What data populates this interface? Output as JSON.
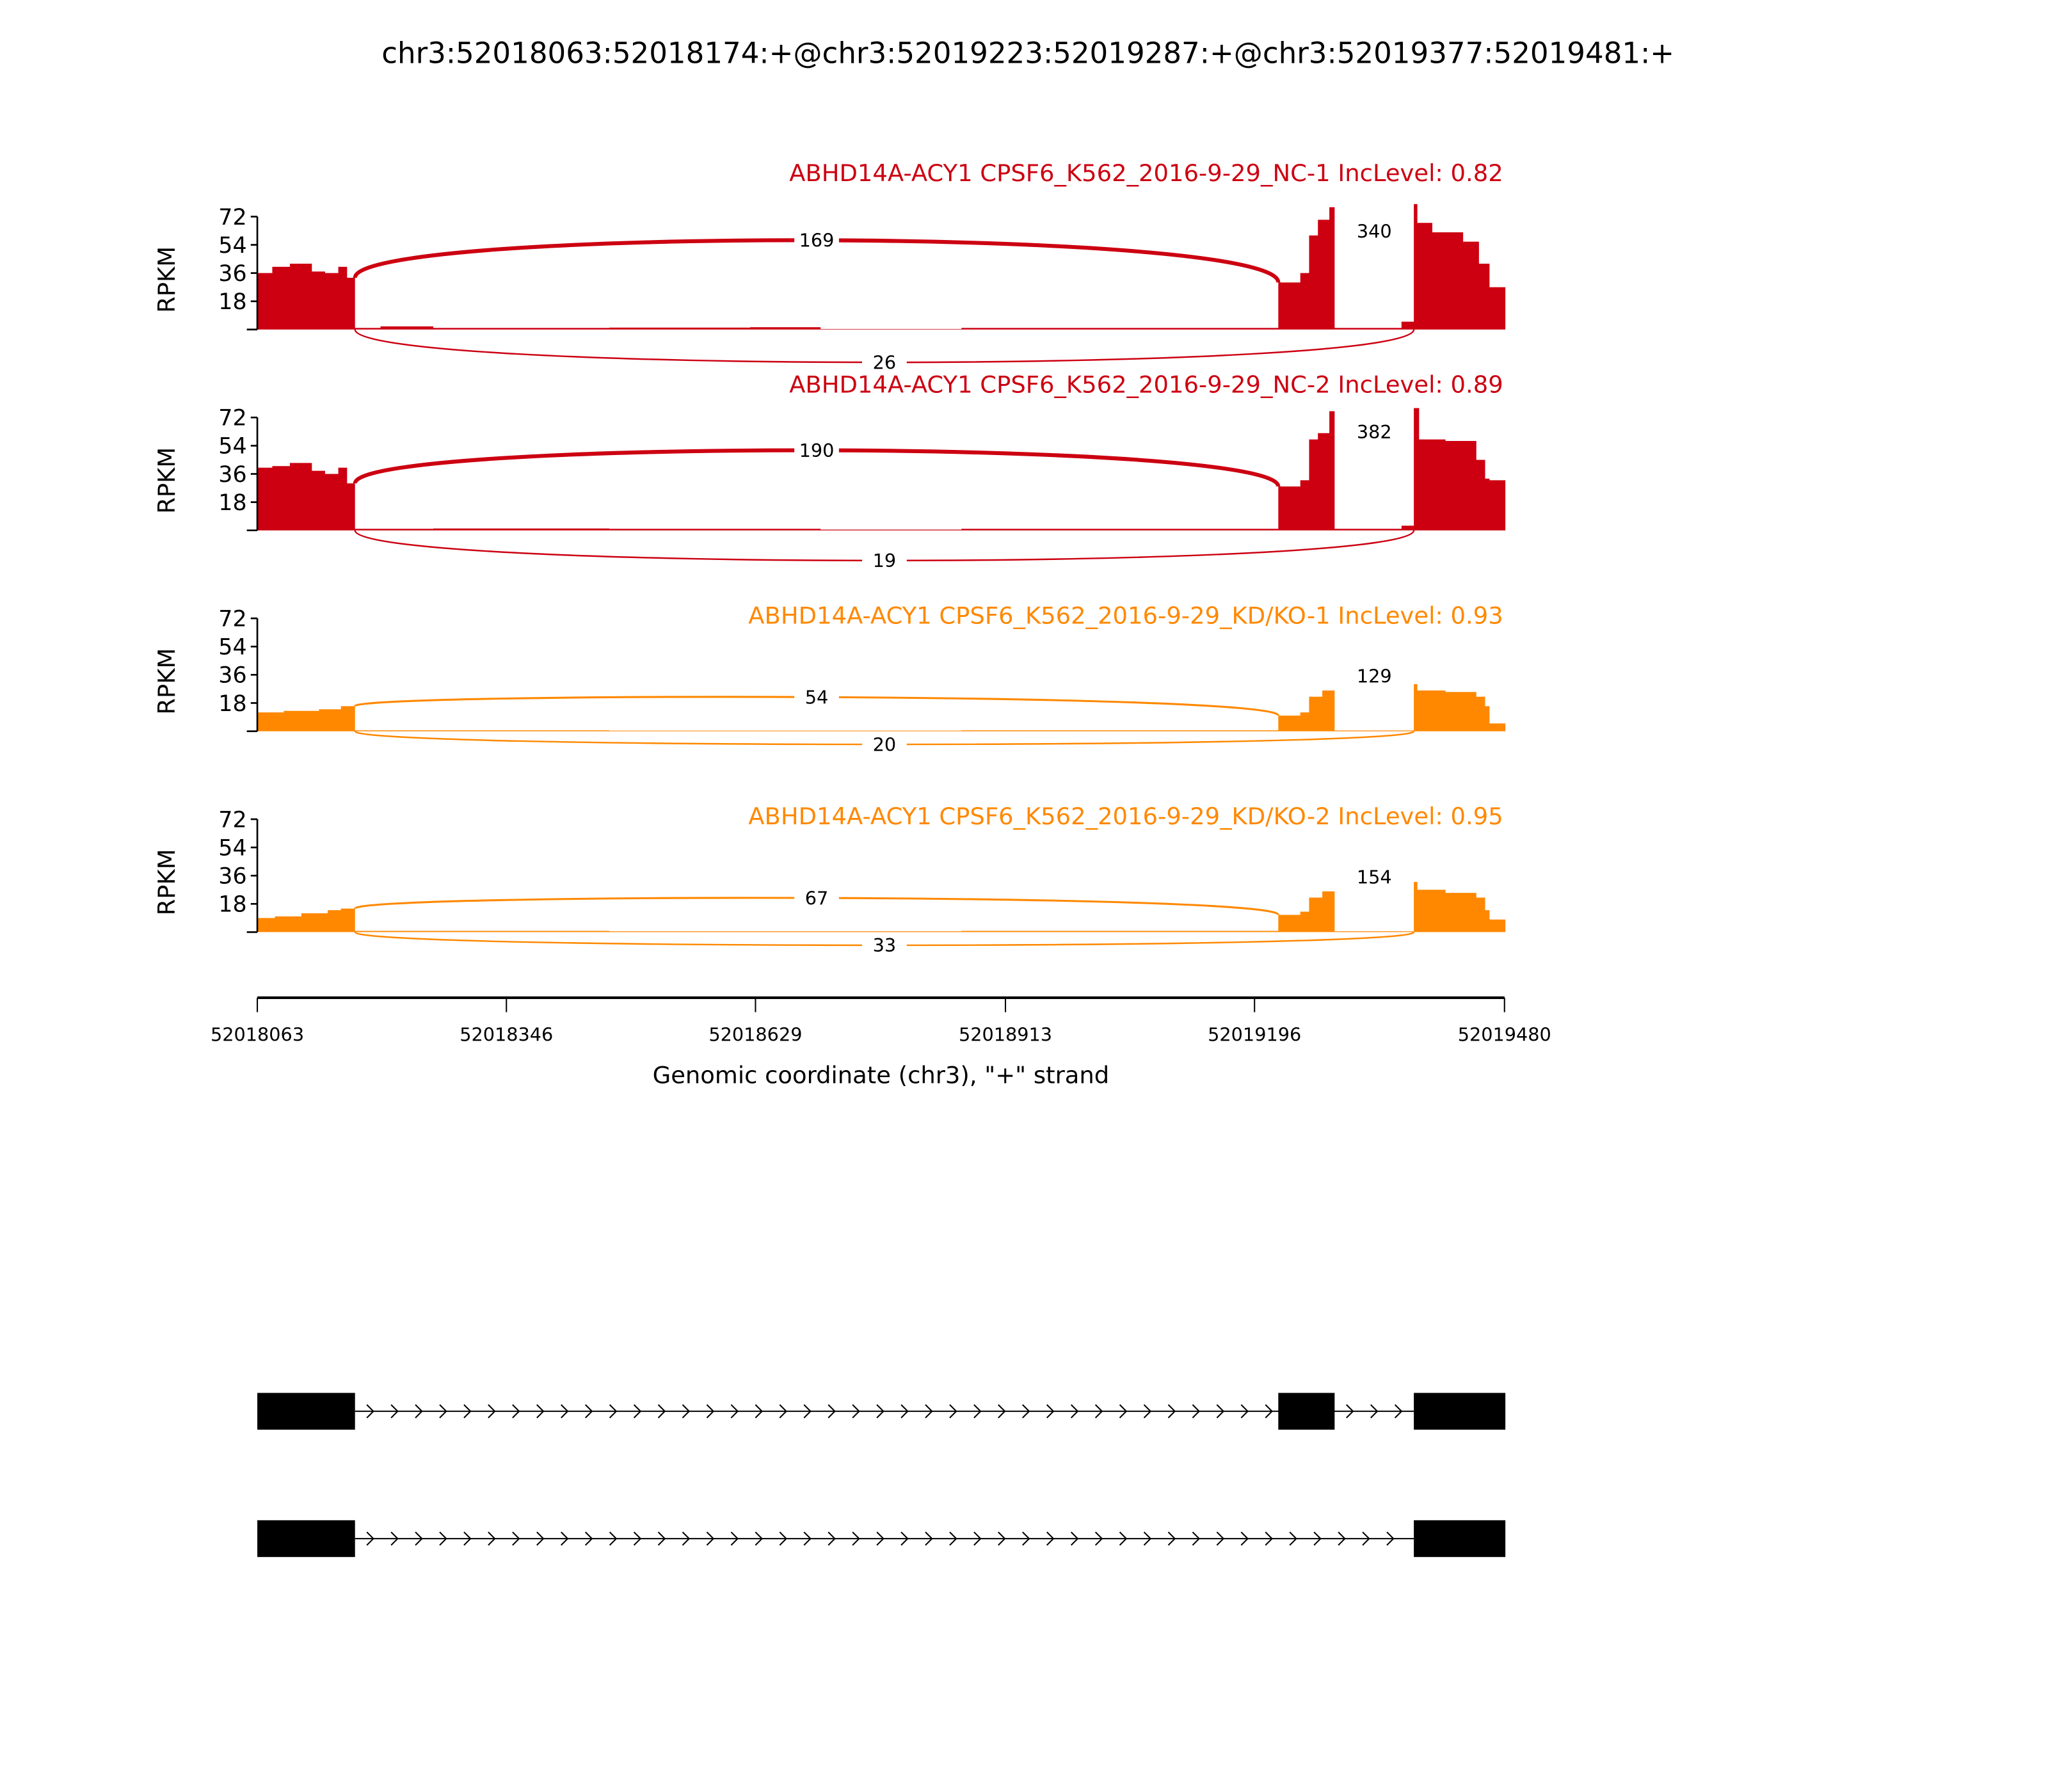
{
  "chart_data": {
    "type": "area",
    "title": "chr3:52018063:52018174:+@chr3:52019223:52019287:+@chr3:52019377:52019481:+",
    "xlabel": "Genomic coordinate (chr3), \"+\" strand",
    "ylabel": "RPKM",
    "xlim": [
      52018063,
      52019480
    ],
    "ylim": [
      0,
      72
    ],
    "x_ticks": [
      "52018063",
      "52018346",
      "52018629",
      "52018913",
      "52019196",
      "52019480"
    ],
    "x_tick_values": [
      52018063,
      52018346,
      52018629,
      52018913,
      52019196,
      52019480
    ],
    "y_ticks": [
      "18",
      "36",
      "54",
      "72"
    ],
    "y_tick_values": [
      18,
      36,
      54,
      72
    ],
    "coverage_position_base": 52018063,
    "colors": {
      "NC": "#cc0011",
      "KD": "#ff8800"
    },
    "series": [
      {
        "name": "ABHD14A-ACY1 CPSF6_K562_2016-9-29_NC-1 IncLevel: 0.82",
        "color": "#cc0011",
        "junctions": {
          "exon1_exon2": "169",
          "exon2_exon3": "340",
          "exon1_exon3": "26"
        },
        "coverage": [
          [
            0,
            17,
            36
          ],
          [
            17,
            37,
            40
          ],
          [
            37,
            62,
            42
          ],
          [
            62,
            77,
            37
          ],
          [
            77,
            92,
            36
          ],
          [
            92,
            102,
            40
          ],
          [
            102,
            111,
            33
          ],
          [
            111,
            140,
            1
          ],
          [
            140,
            200,
            2
          ],
          [
            200,
            400,
            1
          ],
          [
            400,
            560,
            1.2
          ],
          [
            560,
            640,
            1.5
          ],
          [
            640,
            800,
            0.3
          ],
          [
            800,
            1000,
            1
          ],
          [
            1000,
            1160,
            1
          ],
          [
            1160,
            1185,
            30
          ],
          [
            1185,
            1195,
            36
          ],
          [
            1195,
            1205,
            60
          ],
          [
            1205,
            1218,
            70
          ],
          [
            1218,
            1224,
            78
          ],
          [
            1224,
            1300,
            1
          ],
          [
            1300,
            1314,
            5
          ],
          [
            1314,
            1318,
            80
          ],
          [
            1318,
            1335,
            68
          ],
          [
            1335,
            1370,
            62
          ],
          [
            1370,
            1388,
            56
          ],
          [
            1388,
            1400,
            42
          ],
          [
            1400,
            1418,
            27
          ]
        ]
      },
      {
        "name": "ABHD14A-ACY1 CPSF6_K562_2016-9-29_NC-2 IncLevel: 0.89",
        "color": "#cc0011",
        "junctions": {
          "exon1_exon2": "190",
          "exon2_exon3": "382",
          "exon1_exon3": "19"
        },
        "coverage": [
          [
            0,
            17,
            40
          ],
          [
            17,
            37,
            41
          ],
          [
            37,
            62,
            43
          ],
          [
            62,
            77,
            38
          ],
          [
            77,
            92,
            36
          ],
          [
            92,
            102,
            40
          ],
          [
            102,
            111,
            30
          ],
          [
            111,
            200,
            1
          ],
          [
            200,
            400,
            1.2
          ],
          [
            400,
            640,
            1
          ],
          [
            640,
            800,
            0.5
          ],
          [
            800,
            1160,
            1
          ],
          [
            1160,
            1185,
            28
          ],
          [
            1185,
            1195,
            32
          ],
          [
            1195,
            1205,
            58
          ],
          [
            1205,
            1218,
            62
          ],
          [
            1218,
            1224,
            76
          ],
          [
            1224,
            1300,
            1
          ],
          [
            1300,
            1314,
            3
          ],
          [
            1314,
            1320,
            78
          ],
          [
            1320,
            1350,
            58
          ],
          [
            1350,
            1385,
            57
          ],
          [
            1385,
            1395,
            45
          ],
          [
            1395,
            1400,
            33
          ],
          [
            1400,
            1418,
            32
          ]
        ]
      },
      {
        "name": "ABHD14A-ACY1 CPSF6_K562_2016-9-29_KD/KO-1 IncLevel: 0.93",
        "color": "#ff8800",
        "junctions": {
          "exon1_exon2": "54",
          "exon2_exon3": "129",
          "exon1_exon3": "20"
        },
        "coverage": [
          [
            0,
            30,
            12
          ],
          [
            30,
            70,
            13
          ],
          [
            70,
            95,
            14
          ],
          [
            95,
            111,
            16
          ],
          [
            111,
            400,
            0.6
          ],
          [
            400,
            800,
            0.4
          ],
          [
            800,
            1160,
            0.6
          ],
          [
            1160,
            1185,
            10
          ],
          [
            1185,
            1195,
            12
          ],
          [
            1195,
            1210,
            22
          ],
          [
            1210,
            1224,
            26
          ],
          [
            1224,
            1314,
            0.5
          ],
          [
            1314,
            1318,
            30
          ],
          [
            1318,
            1350,
            26
          ],
          [
            1350,
            1385,
            25
          ],
          [
            1385,
            1395,
            22
          ],
          [
            1395,
            1400,
            16
          ],
          [
            1400,
            1418,
            5
          ]
        ]
      },
      {
        "name": "ABHD14A-ACY1 CPSF6_K562_2016-9-29_KD/KO-2 IncLevel: 0.95",
        "color": "#ff8800",
        "junctions": {
          "exon1_exon2": "67",
          "exon2_exon3": "154",
          "exon1_exon3": "33"
        },
        "coverage": [
          [
            0,
            20,
            9
          ],
          [
            20,
            50,
            10
          ],
          [
            50,
            80,
            12
          ],
          [
            80,
            95,
            14
          ],
          [
            95,
            111,
            15
          ],
          [
            111,
            400,
            0.8
          ],
          [
            400,
            800,
            0.5
          ],
          [
            800,
            1160,
            0.8
          ],
          [
            1160,
            1185,
            11
          ],
          [
            1185,
            1195,
            13
          ],
          [
            1195,
            1210,
            22
          ],
          [
            1210,
            1224,
            26
          ],
          [
            1224,
            1314,
            0.5
          ],
          [
            1314,
            1318,
            32
          ],
          [
            1318,
            1350,
            27
          ],
          [
            1350,
            1385,
            25
          ],
          [
            1385,
            1395,
            22
          ],
          [
            1395,
            1400,
            14
          ],
          [
            1400,
            1418,
            8
          ]
        ]
      }
    ],
    "exons": [
      [
        52018063,
        52018174
      ],
      [
        52019223,
        52019287
      ],
      [
        52019377,
        52019481
      ]
    ],
    "transcripts": [
      {
        "exons": [
          [
            52018063,
            52018174
          ],
          [
            52019223,
            52019287
          ],
          [
            52019377,
            52019481
          ]
        ]
      },
      {
        "exons": [
          [
            52018063,
            52018174
          ],
          [
            52019377,
            52019481
          ]
        ]
      }
    ]
  }
}
